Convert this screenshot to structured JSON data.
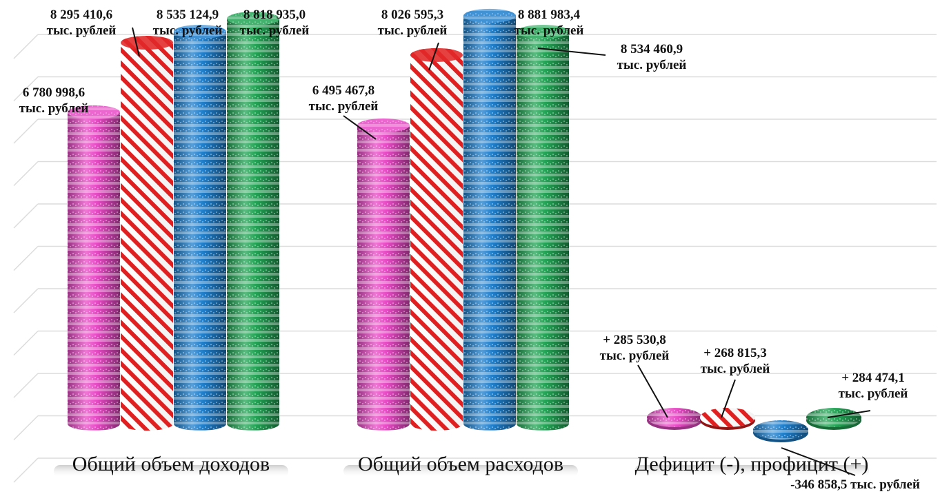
{
  "chart_data": {
    "type": "bar",
    "categories": [
      "Общий объем доходов",
      "Общий объем расходов",
      "Дефицит (-), профицит (+)"
    ],
    "unit": "тыс. рублей",
    "series": [
      {
        "values": [
          6780998.6,
          6495467.8,
          285530.8
        ],
        "color": "#e84bc6",
        "pattern": "stripes-horizontal"
      },
      {
        "values": [
          8295410.6,
          8026595.3,
          268815.3
        ],
        "color": "#e02020",
        "pattern": "stripes-diagonal"
      },
      {
        "values": [
          8535124.9,
          8881983.4,
          -346858.5
        ],
        "color": "#1f7fcc",
        "pattern": "stripes-horizontal"
      },
      {
        "values": [
          8818935.0,
          8534460.9,
          284474.1
        ],
        "color": "#23a455",
        "pattern": "stripes-horizontal"
      }
    ],
    "data_labels": [
      [
        "6 780 998,6",
        "тыс. рублей"
      ],
      [
        "8 295 410,6",
        "тыс. рублей"
      ],
      [
        "8 535 124,9",
        "тыс. рублей"
      ],
      [
        "8 818 935,0",
        "тыс. рублей"
      ],
      [
        "6 495 467,8",
        "тыс. рублей"
      ],
      [
        "8 026 595,3",
        "тыс. рублей"
      ],
      [
        "8 881 983,4",
        "тыс. рублей"
      ],
      [
        "8 534 460,9",
        "тыс. рублей"
      ],
      [
        "+ 285 530,8",
        "тыс. рублей"
      ],
      [
        "+ 268 815,3",
        "тыс. рублей"
      ],
      [
        "-346 858,5 тыс. рублей"
      ],
      [
        "+ 284 474,1",
        "тыс. рублей"
      ]
    ],
    "grid": true,
    "legend": "none"
  }
}
